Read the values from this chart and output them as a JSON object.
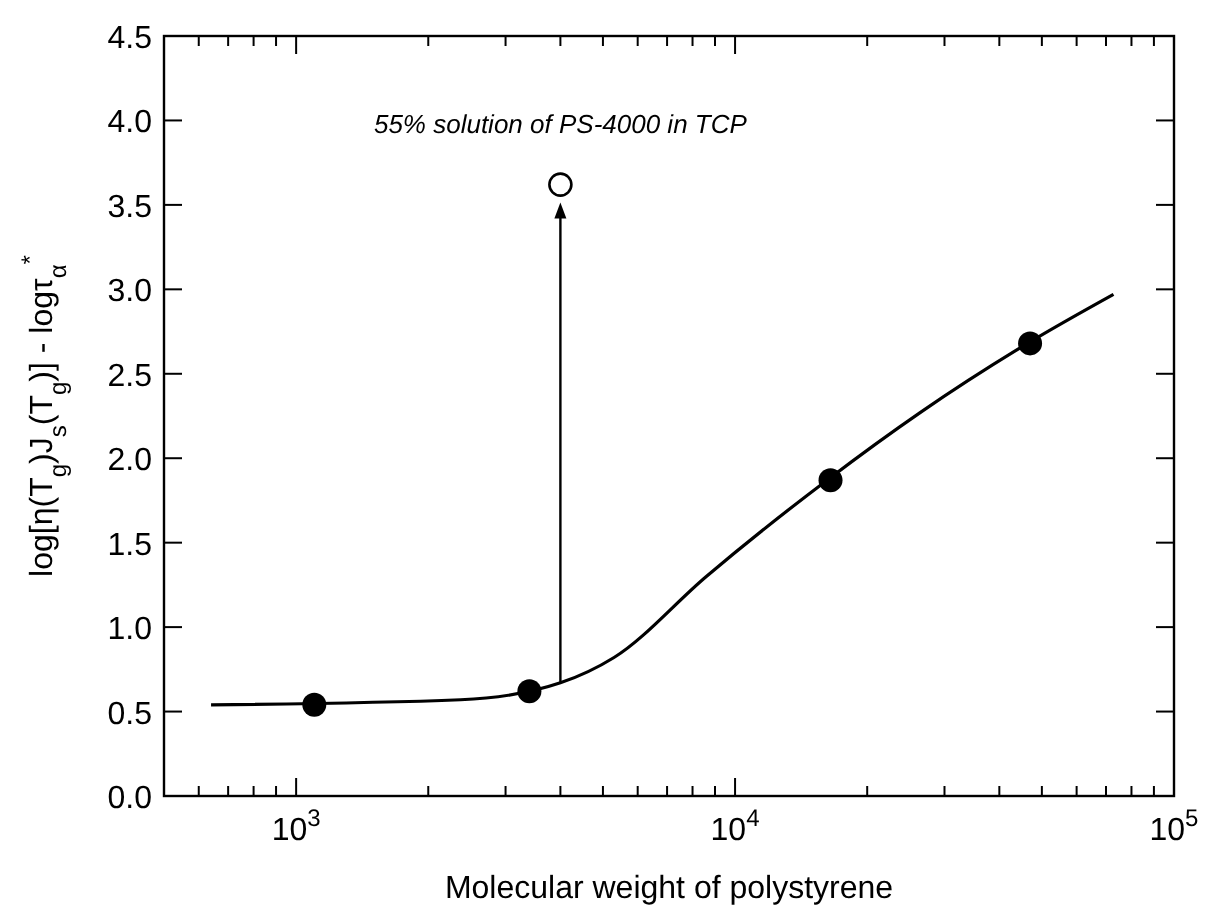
{
  "chart_data": {
    "type": "scatter",
    "xlabel": "Molecular weight of polystyrene",
    "ylabel": "log[η(T$_{g}$)J$_{s}$(T$_{g}$)] - logτ$_{α}$$^{*}$",
    "log": "x",
    "xlim": [
      500,
      100000
    ],
    "xticks": [
      {
        "value": 600,
        "label": null
      },
      {
        "value": 700,
        "label": null
      },
      {
        "value": 800,
        "label": null
      },
      {
        "value": 900,
        "label": null
      },
      {
        "value": 1000,
        "label": "10$^{3}$"
      },
      {
        "value": 2000,
        "label": null
      },
      {
        "value": 3000,
        "label": null
      },
      {
        "value": 4000,
        "label": null
      },
      {
        "value": 5000,
        "label": null
      },
      {
        "value": 6000,
        "label": null
      },
      {
        "value": 7000,
        "label": null
      },
      {
        "value": 8000,
        "label": null
      },
      {
        "value": 9000,
        "label": null
      },
      {
        "value": 10000,
        "label": "10$^{4}$"
      },
      {
        "value": 20000,
        "label": null
      },
      {
        "value": 30000,
        "label": null
      },
      {
        "value": 40000,
        "label": null
      },
      {
        "value": 50000,
        "label": null
      },
      {
        "value": 60000,
        "label": null
      },
      {
        "value": 70000,
        "label": null
      },
      {
        "value": 80000,
        "label": null
      },
      {
        "value": 90000,
        "label": null
      },
      {
        "value": 100000,
        "label": "10$^{5}$"
      }
    ],
    "ylim": [
      0,
      4.5
    ],
    "yticks": [
      {
        "value": 0,
        "label": "0.0"
      },
      {
        "value": 0.5,
        "label": "0.5"
      },
      {
        "value": 1,
        "label": "1.0"
      },
      {
        "value": 1.5,
        "label": "1.5"
      },
      {
        "value": 2,
        "label": "2.0"
      },
      {
        "value": 2.5,
        "label": "2.5"
      },
      {
        "value": 3,
        "label": "3.0"
      },
      {
        "value": 3.5,
        "label": "3.5"
      },
      {
        "value": 4,
        "label": "4.0"
      },
      {
        "value": 4.5,
        "label": "4.5"
      }
    ],
    "grid": false,
    "series": [
      {
        "type": "line",
        "marker": "none",
        "color": "#000000",
        "x": [
          640,
          2370,
          4000,
          5300,
          8600,
          16200,
          26400,
          46400,
          72800
        ],
        "values": [
          0.54,
          0.57,
          0.67,
          0.82,
          1.3,
          1.87,
          2.27,
          2.68,
          2.97
        ]
      },
      {
        "marker": "circle",
        "color": "#000000",
        "x": [
          1100,
          3400,
          16500,
          47000
        ],
        "values": [
          0.54,
          0.62,
          1.87,
          2.68
        ]
      },
      {
        "marker": "circle",
        "color": "#ffffff",
        "x": [
          4000
        ],
        "values": [
          3.62
        ]
      }
    ],
    "annotations": [
      {
        "text": "55% solution of PS-4000 in TCP",
        "x": 4000,
        "y": 3.62
      }
    ]
  }
}
